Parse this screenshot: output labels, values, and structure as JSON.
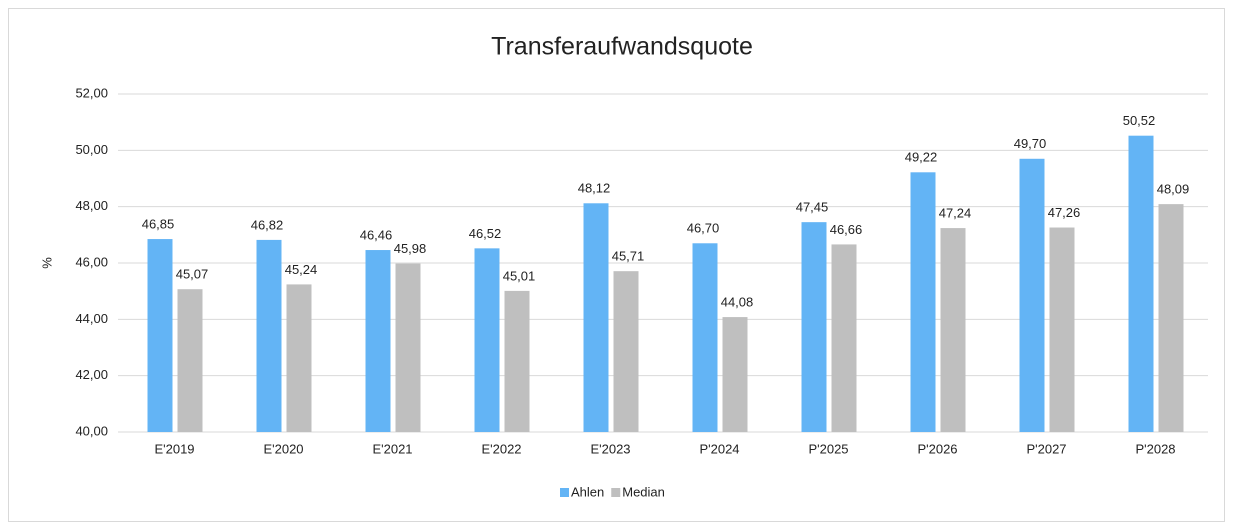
{
  "chart_data": {
    "type": "bar",
    "title": "Transferaufwandsquote",
    "y_label": "%",
    "categories": [
      "E'2019",
      "E'2020",
      "E'2021",
      "E'2022",
      "E'2023",
      "P'2024",
      "P'2025",
      "P'2026",
      "P'2027",
      "P'2028"
    ],
    "series": [
      {
        "name": "Ahlen",
        "color": "#63b4f5",
        "values": [
          46.85,
          46.82,
          46.46,
          46.52,
          48.12,
          46.7,
          47.45,
          49.22,
          49.7,
          50.52
        ],
        "value_labels": [
          "46,85",
          "46,82",
          "46,46",
          "46,52",
          "48,12",
          "46,70",
          "47,45",
          "49,22",
          "49,70",
          "50,52"
        ]
      },
      {
        "name": "Median",
        "color": "#bfbfbf",
        "values": [
          45.07,
          45.24,
          45.98,
          45.01,
          45.71,
          44.08,
          46.66,
          47.24,
          47.26,
          48.09
        ],
        "value_labels": [
          "45,07",
          "45,24",
          "45,98",
          "45,01",
          "45,71",
          "44,08",
          "46,66",
          "47,24",
          "47,26",
          "48,09"
        ]
      }
    ],
    "ylim": [
      40,
      52
    ],
    "yticks": [
      {
        "value": 40,
        "label": "40,00"
      },
      {
        "value": 42,
        "label": "42,00"
      },
      {
        "value": 44,
        "label": "44,00"
      },
      {
        "value": 46,
        "label": "46,00"
      },
      {
        "value": 48,
        "label": "48,00"
      },
      {
        "value": 50,
        "label": "50,00"
      },
      {
        "value": 52,
        "label": "52,00"
      }
    ],
    "grid": true,
    "legend": "bottom"
  }
}
